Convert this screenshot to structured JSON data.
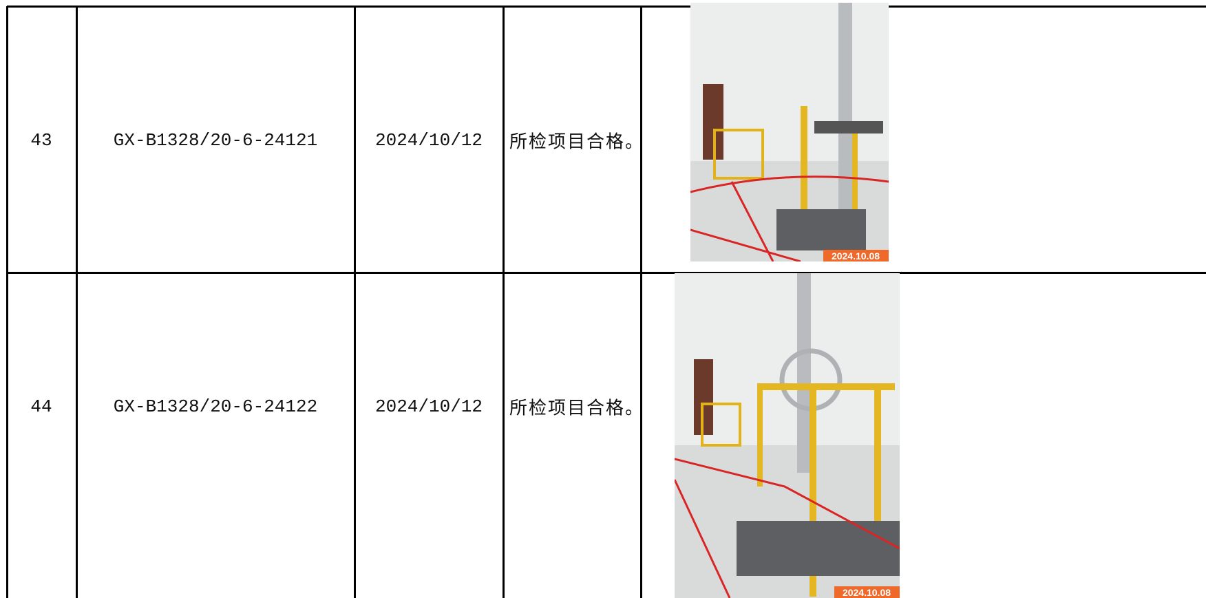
{
  "table": {
    "rows": [
      {
        "cells": [
          "43",
          "GX-B1328/20-6-24121",
          "2024/10/12",
          "所检项目合格。"
        ],
        "photo_stamp": "2024.10.08"
      },
      {
        "cells": [
          "44",
          "GX-B1328/20-6-24122",
          "2024/10/12",
          "所检项目合格。"
        ],
        "photo_stamp": "2024.10.08"
      }
    ]
  }
}
